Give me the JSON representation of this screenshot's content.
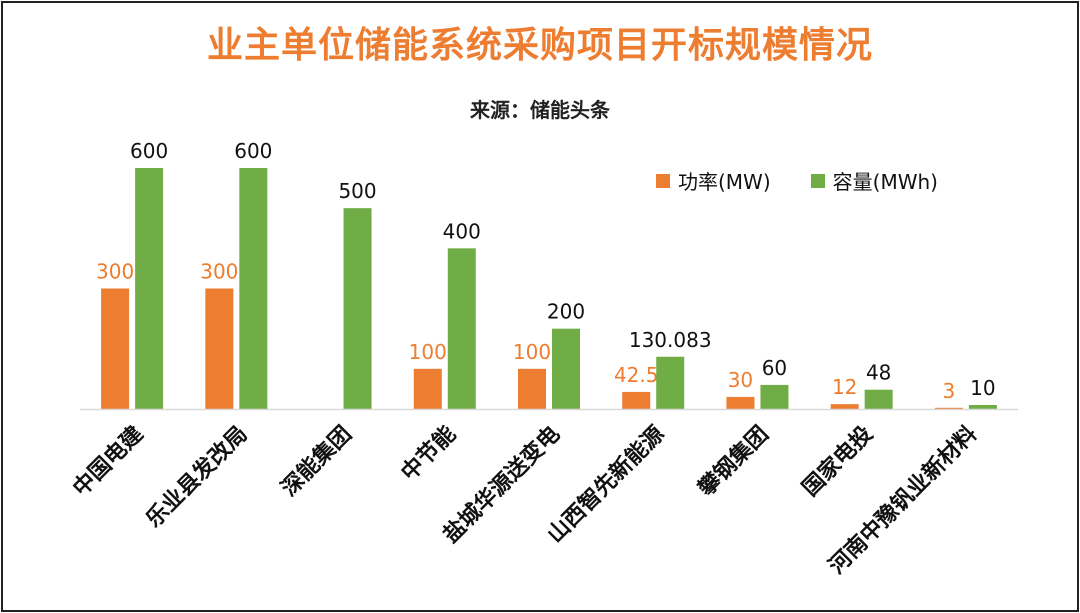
{
  "title": "业主单位储能系统采购项目开标规模情况",
  "subtitle": "来源：储能头条",
  "colors": {
    "power": "#ED7D31",
    "capacity": "#70AD47",
    "title": "#ED7D31",
    "axis": "#D9D9D9"
  },
  "chart_data": {
    "type": "bar",
    "title": "业主单位储能系统采购项目开标规模情况",
    "subtitle": "来源：储能头条",
    "categories": [
      "中国电建",
      "乐业县发改局",
      "深能集团",
      "中节能",
      "盐城华源送变电",
      "山西智先新能源",
      "攀钢集团",
      "国家电投",
      "河南中豫钒业新材料"
    ],
    "series": [
      {
        "name": "功率(MW)",
        "values": [
          300,
          300,
          null,
          100,
          100,
          42.5,
          30,
          12,
          3
        ],
        "labels": [
          "300",
          "300",
          "",
          "100",
          "100",
          "42.5",
          "30",
          "12",
          "3"
        ]
      },
      {
        "name": "容量(MWh)",
        "values": [
          600,
          600,
          500,
          400,
          200,
          130.083,
          60,
          48,
          10
        ],
        "labels": [
          "600",
          "600",
          "500",
          "400",
          "200",
          "130.083",
          "60",
          "48",
          "10"
        ]
      }
    ],
    "ylim": [
      0,
      600
    ],
    "grid": false,
    "legend_position": "top-right",
    "xlabel_rotation_deg": -45
  }
}
